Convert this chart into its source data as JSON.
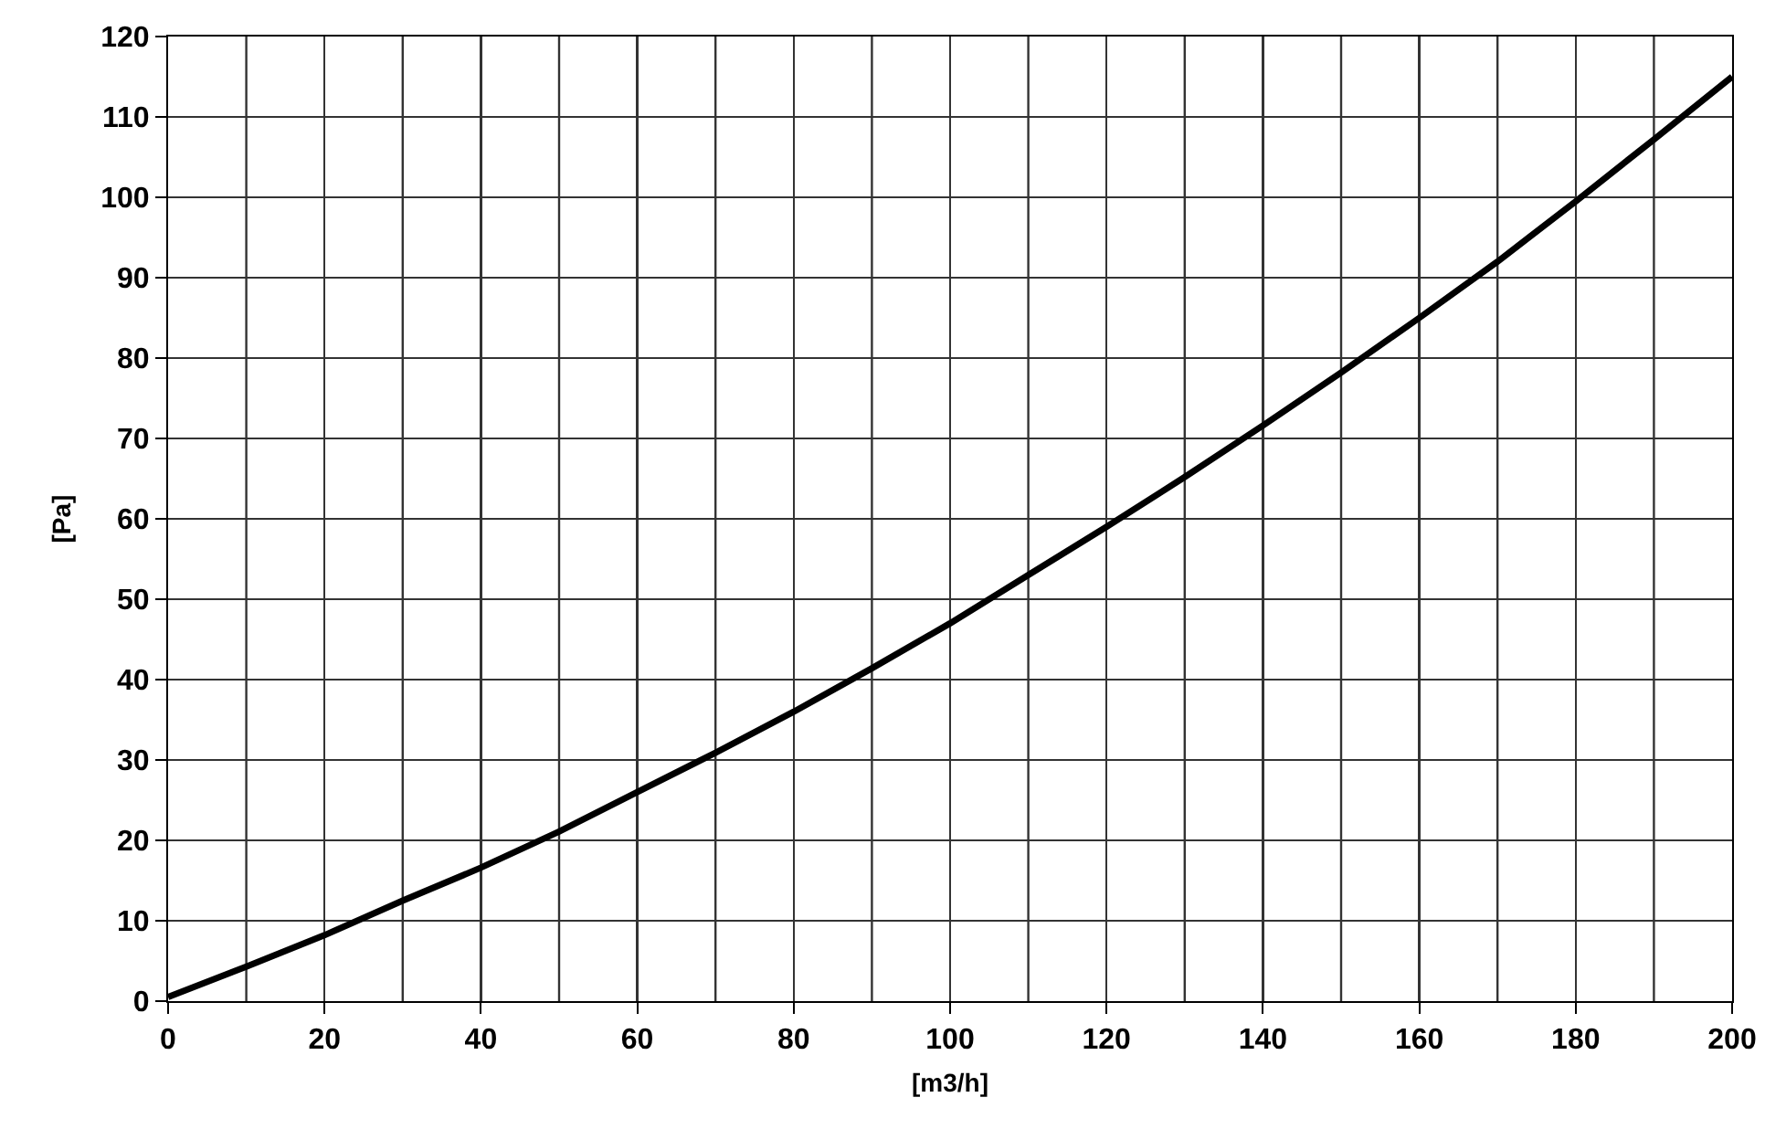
{
  "chart_data": {
    "type": "line",
    "xlabel": "[m3/h]",
    "ylabel": "[Pa]",
    "x": [
      0,
      10,
      20,
      30,
      40,
      50,
      60,
      70,
      80,
      90,
      100,
      110,
      120,
      130,
      140,
      150,
      160,
      170,
      180,
      190,
      200
    ],
    "series": [
      {
        "color": "#000000",
        "values": [
          0.5,
          4.3,
          8.2,
          12.5,
          16.6,
          21.1,
          26,
          30.9,
          36,
          41.4,
          47,
          53,
          59,
          65.2,
          71.6,
          78.2,
          85,
          92,
          99.5,
          107.2,
          115
        ]
      }
    ],
    "xlim": [
      0,
      200
    ],
    "xticks": [
      0,
      20,
      40,
      60,
      80,
      100,
      120,
      140,
      160,
      180,
      200
    ],
    "ylim": [
      0,
      120
    ],
    "yticks": [
      0,
      10,
      20,
      30,
      40,
      50,
      60,
      70,
      80,
      90,
      100,
      110,
      120
    ],
    "grid": true,
    "marker": "none",
    "line_style": "solid"
  }
}
